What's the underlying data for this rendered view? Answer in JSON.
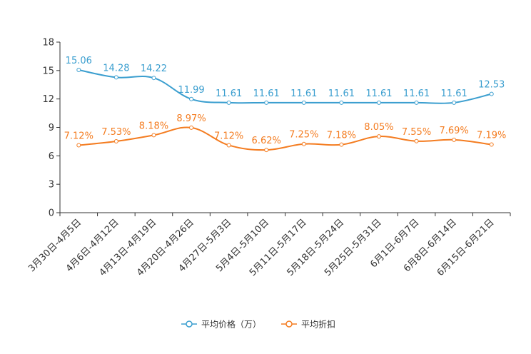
{
  "chart_data": {
    "type": "line",
    "title": "",
    "xlabel": "",
    "ylabel": "",
    "ylim": [
      0,
      18
    ],
    "yticks": [
      0,
      3,
      6,
      9,
      12,
      15,
      18
    ],
    "grid": false,
    "legend_position": "bottom",
    "categories": [
      "3月30日-4月5日",
      "4月6日-4月12日",
      "4月13日-4月19日",
      "4月20日-4月26日",
      "4月27日-5月3日",
      "5月4日-5月10日",
      "5月11日-5月17日",
      "5月18日-5月24日",
      "5月25日-5月31日",
      "6月1日-6月7日",
      "6月8日-6月14日",
      "6月15日-6月21日"
    ],
    "series": [
      {
        "name": "平均价格（万）",
        "color": "#3a9ecf",
        "values": [
          15.06,
          14.28,
          14.22,
          11.99,
          11.61,
          11.61,
          11.61,
          11.61,
          11.61,
          11.61,
          11.61,
          12.53
        ],
        "labels": [
          "15.06",
          "14.28",
          "14.22",
          "11.99",
          "11.61",
          "11.61",
          "11.61",
          "11.61",
          "11.61",
          "11.61",
          "11.61",
          "12.53"
        ]
      },
      {
        "name": "平均折扣",
        "color": "#f47c20",
        "values": [
          7.12,
          7.53,
          8.18,
          8.97,
          7.12,
          6.62,
          7.25,
          7.18,
          8.05,
          7.55,
          7.69,
          7.19
        ],
        "labels": [
          "7.12%",
          "7.53%",
          "8.18%",
          "8.97%",
          "7.12%",
          "6.62%",
          "7.25%",
          "7.18%",
          "8.05%",
          "7.55%",
          "7.69%",
          "7.19%"
        ]
      }
    ]
  }
}
